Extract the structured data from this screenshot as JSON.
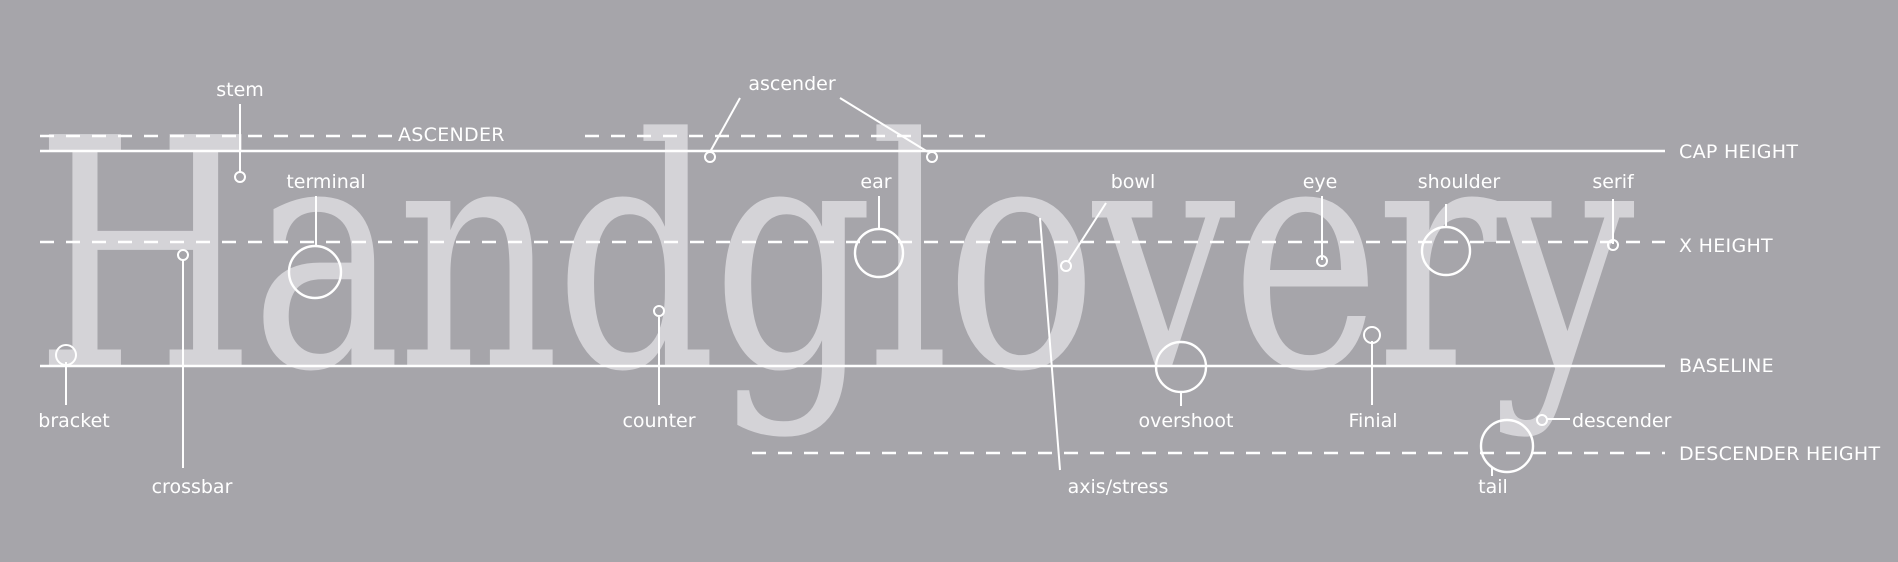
{
  "diagram": {
    "word": "Handglovery",
    "guides": {
      "ascender": "ASCENDER",
      "cap_height": "CAP HEIGHT",
      "x_height": "X HEIGHT",
      "baseline": "BASELINE",
      "descender_height": "DESCENDER HEIGHT"
    },
    "labels": {
      "stem": "stem",
      "terminal": "terminal",
      "bracket": "bracket",
      "crossbar": "crossbar",
      "counter": "counter",
      "ascender": "ascender",
      "ear": "ear",
      "bowl": "bowl",
      "axis": "axis/stress",
      "overshoot": "overshoot",
      "eye": "eye",
      "finial": "Finial",
      "shoulder": "shoulder",
      "serif": "serif",
      "descender": "descender",
      "tail": "tail"
    }
  },
  "colors": {
    "background": "#a6a5aa",
    "letters": "#d4d3d7",
    "lines": "#ffffff"
  }
}
